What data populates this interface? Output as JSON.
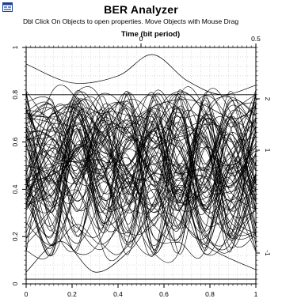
{
  "app": {
    "title": "BER Analyzer",
    "hint": "Dbl Click On Objects to open properties.  Move Objects with Mouse Drag"
  },
  "colors": {
    "trace": "#000000",
    "grid": "#b8b8b8",
    "frame": "#000000",
    "background": "#ffffff"
  },
  "icons": {
    "app": "app-window-icon"
  },
  "chart_data": {
    "type": "line",
    "title": "BER Analyzer",
    "plot_kind": "eye diagram",
    "xlabel": "",
    "top_xlabel": "Time (bit period)",
    "ylabel": "",
    "right_ylabel": "",
    "xlim": [
      0,
      1
    ],
    "ylim": [
      0,
      1
    ],
    "top_xlim": [
      -0.5,
      0.5
    ],
    "right_ylim": [
      -1.6,
      3.0
    ],
    "x_ticks": [
      0,
      0.2,
      0.4,
      0.6,
      0.8,
      1
    ],
    "x_tick_labels": [
      "0",
      "0.2",
      "0.4",
      "0.6",
      "0.8",
      "1"
    ],
    "y_ticks": [
      0,
      0.2,
      0.4,
      0.6,
      0.8,
      1
    ],
    "y_tick_labels": [
      "0",
      "0.2",
      "0.4",
      "0.6",
      "0.8",
      "1"
    ],
    "top_ticks": [
      0,
      0.5
    ],
    "top_tick_labels": [
      "0",
      "0.5"
    ],
    "right_ticks": [
      -1,
      1,
      2
    ],
    "right_tick_labels": [
      "-1",
      "1",
      "2"
    ],
    "grid": true,
    "legend": "none",
    "trace_count": 90,
    "trace_band": [
      0.12,
      0.82
    ],
    "highlighted_traces": [
      {
        "x": [
          0,
          0.2,
          0.4,
          0.55,
          0.7,
          0.85,
          1
        ],
        "y": [
          0.93,
          0.85,
          0.88,
          0.97,
          0.86,
          0.8,
          0.84
        ]
      },
      {
        "x": [
          0,
          0.15,
          0.3,
          0.45,
          0.6,
          0.8,
          1
        ],
        "y": [
          0.05,
          0.18,
          0.05,
          0.14,
          0.3,
          0.15,
          0.06
        ]
      },
      {
        "x": [
          0,
          0.2,
          0.35,
          0.5,
          0.7,
          0.9,
          1
        ],
        "y": [
          0.62,
          0.75,
          0.55,
          0.72,
          0.78,
          0.7,
          0.75
        ]
      }
    ]
  }
}
